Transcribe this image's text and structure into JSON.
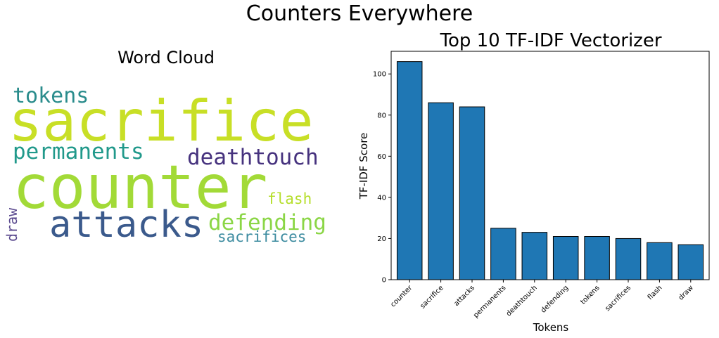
{
  "suptitle": "Counters Everywhere",
  "wordcloud": {
    "title": "Word Cloud",
    "words": [
      {
        "text": "sacrifice",
        "color": "#c8df26"
      },
      {
        "text": "counter",
        "color": "#a2da37"
      },
      {
        "text": "attacks",
        "color": "#3b5a8c"
      },
      {
        "text": "tokens",
        "color": "#2a8c8c"
      },
      {
        "text": "permanents",
        "color": "#21998b"
      },
      {
        "text": "deathtouch",
        "color": "#46327e"
      },
      {
        "text": "defending",
        "color": "#8bd646"
      },
      {
        "text": "flash",
        "color": "#b5de2b"
      },
      {
        "text": "sacrifices",
        "color": "#3d8ca0"
      },
      {
        "text": "draw",
        "color": "#5b4a8f"
      }
    ]
  },
  "chart_data": {
    "type": "bar",
    "title": "Top 10 TF-IDF Vectorizer",
    "xlabel": "Tokens",
    "ylabel": "TF-IDF Score",
    "categories": [
      "counter",
      "sacrifice",
      "attacks",
      "permanents",
      "deathtouch",
      "defending",
      "tokens",
      "sacrifices",
      "flash",
      "draw"
    ],
    "values": [
      106,
      86,
      84,
      25,
      23,
      21,
      21,
      20,
      18,
      17
    ],
    "ylim": [
      0,
      111
    ],
    "yticks": [
      0,
      20,
      40,
      60,
      80,
      100
    ],
    "bar_color": "#1f77b4",
    "edge_color": "#000000",
    "grid": false
  }
}
